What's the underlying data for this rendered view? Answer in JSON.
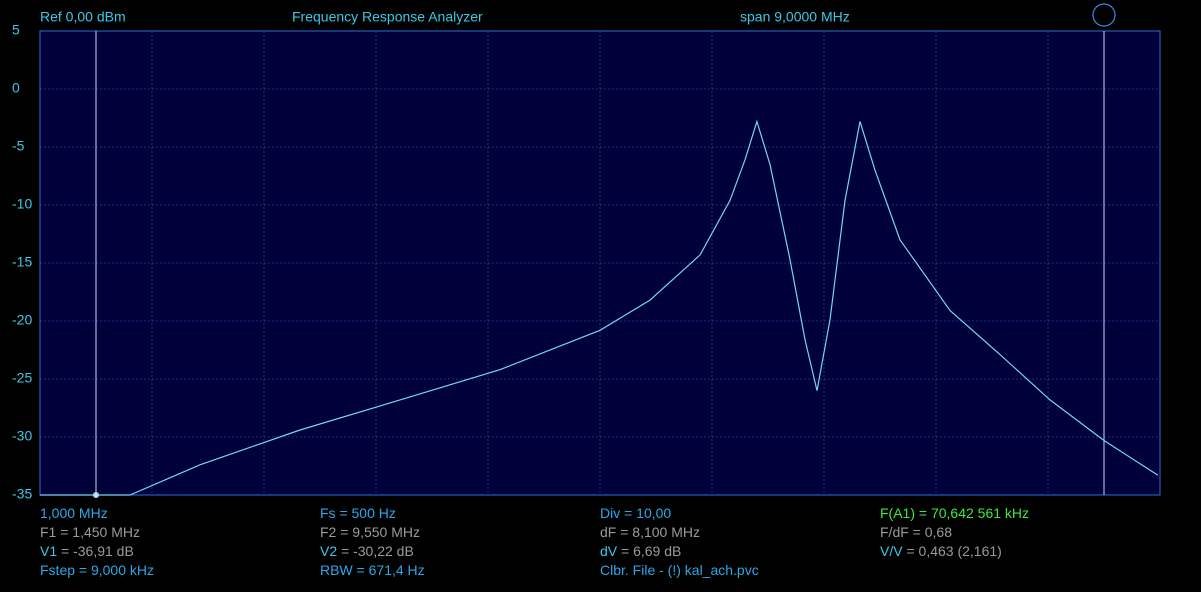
{
  "header": {
    "ref": "Ref  0,00 dBm",
    "title": "Frequency Response Analyzer",
    "span": "span 9,0000 MHz"
  },
  "chart_data": {
    "type": "line",
    "xlim": [
      1,
      10
    ],
    "ylim": [
      -35,
      5
    ],
    "yticks": [
      5,
      0,
      -5,
      -10,
      -15,
      -20,
      -25,
      -30,
      -35
    ],
    "grid": true,
    "markers": [
      1.45,
      9.55
    ],
    "x": [
      1,
      1.723,
      2.286,
      3.089,
      3.893,
      4.696,
      5.5,
      5.902,
      6.304,
      6.545,
      6.665,
      6.761,
      6.866,
      7.027,
      7.147,
      7.244,
      7.348,
      7.469,
      7.589,
      7.71,
      7.911,
      8.313,
      8.714,
      9.116,
      9.55,
      9.984
    ],
    "series": [
      {
        "color": "#6fd8f4",
        "values": [
          -35,
          -35,
          -32.4,
          -29.4,
          -26.8,
          -24.2,
          -20.8,
          -18.2,
          -14.3,
          -9.6,
          -6.1,
          -2.8,
          -6.5,
          -14.7,
          -21.6,
          -26,
          -19.9,
          -9.6,
          -2.8,
          -7,
          -13,
          -19.1,
          -22.9,
          -26.8,
          -30.3,
          -33.3
        ]
      }
    ]
  },
  "readouts": [
    [
      {
        "text": "1,000 MHz",
        "color": "#2aa8e8"
      },
      {
        "text": "F1 = 1,450 MHz",
        "color": "#9a9a9a"
      },
      {
        "label": "V1",
        "text": " = -36,91 dB",
        "color": "#9a9a9a"
      },
      {
        "text": "Fstep = 9,000 kHz",
        "color": "#2aa8e8"
      }
    ],
    [
      {
        "text": "Fs = 500 Hz",
        "color": "#2aa8e8"
      },
      {
        "text": "F2 = 9,550 MHz",
        "color": "#9a9a9a"
      },
      {
        "label": "V2",
        "text": " = -30,22 dB",
        "color": "#9a9a9a"
      },
      {
        "text": "RBW = 671,4 Hz",
        "color": "#2aa8e8"
      }
    ],
    [
      {
        "text": "Div = 10,00",
        "color": "#2aa8e8"
      },
      {
        "text": "dF = 8,100 MHz",
        "color": "#9a9a9a"
      },
      {
        "label": "dV",
        "text": " = 6,69 dB",
        "color": "#9a9a9a"
      },
      {
        "text": "Clbr. File - (!) kal_ach.pvc",
        "color": "#2aa8e8"
      }
    ],
    [
      {
        "text": "F(A1) = 70,642 561 kHz",
        "color": "#3ee83e"
      },
      {
        "text": "F/dF = 0,68",
        "color": "#9a9a9a"
      },
      {
        "label": "V/V",
        "text": " = 0,463 (2,161)",
        "color": "#9a9a9a"
      },
      {
        "text": "",
        "color": "#2aa8e8"
      }
    ]
  ]
}
